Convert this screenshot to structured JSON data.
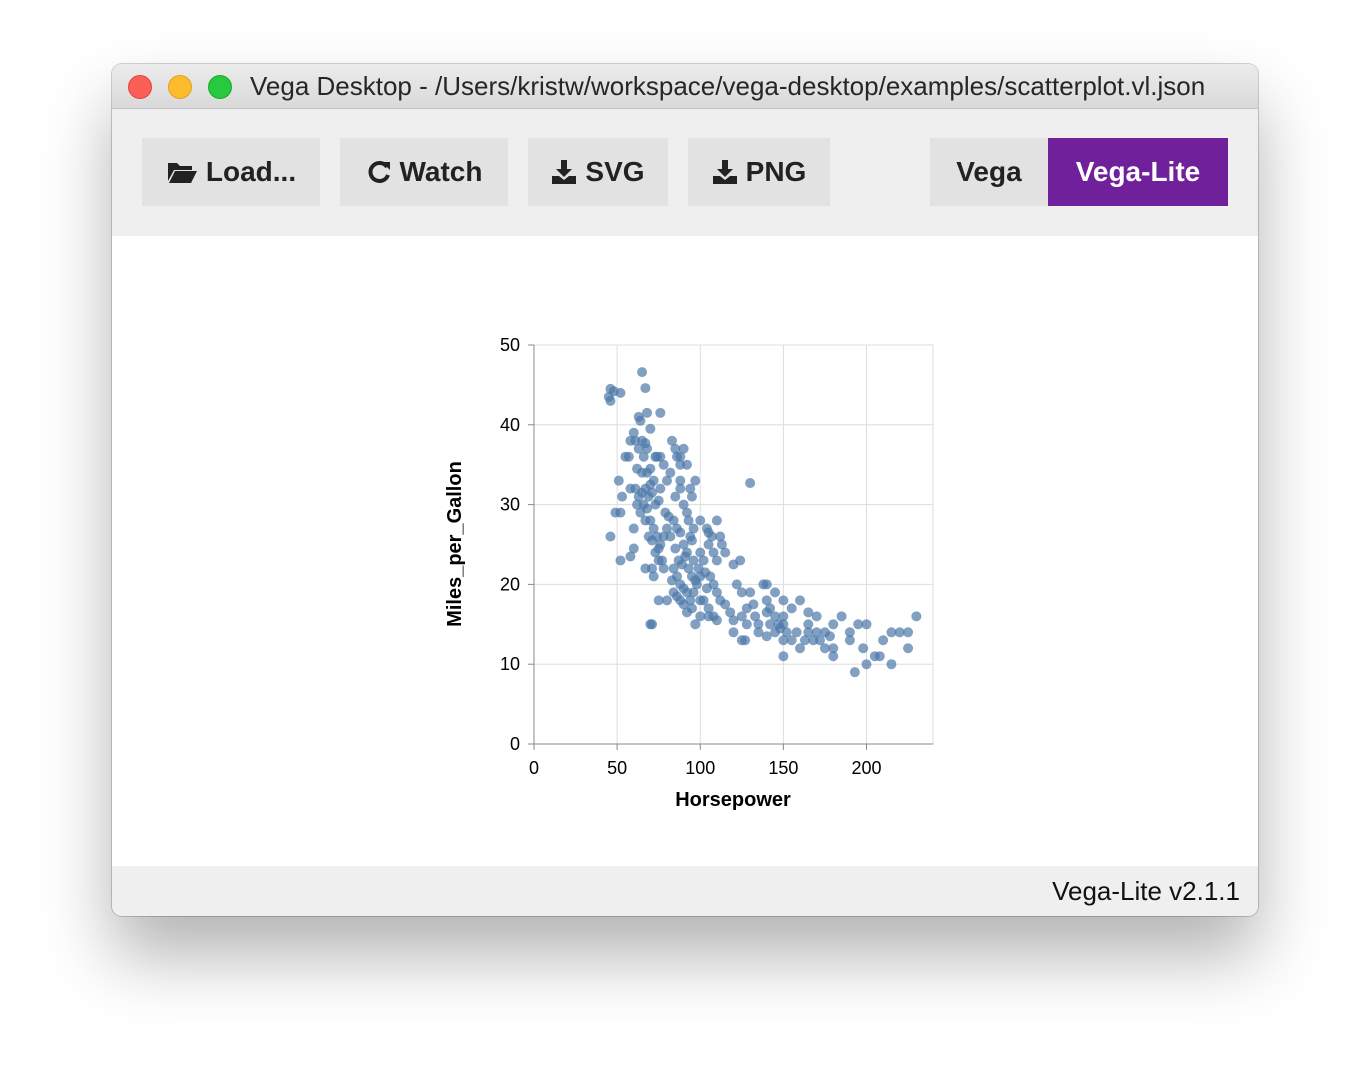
{
  "window": {
    "title": "Vega Desktop - /Users/kristw/workspace/vega-desktop/examples/scatterplot.vl.json"
  },
  "toolbar": {
    "load_label": "Load...",
    "watch_label": "Watch",
    "svg_label": "SVG",
    "png_label": "PNG",
    "mode_vega_label": "Vega",
    "mode_vegalite_label": "Vega-Lite",
    "active_mode": "Vega-Lite",
    "accent_color": "#70209a"
  },
  "icons": {
    "load": "folder-open-icon",
    "watch": "refresh-icon",
    "svg": "download-icon",
    "png": "download-icon"
  },
  "status": {
    "version": "Vega-Lite v2.1.1"
  },
  "chart_data": {
    "type": "scatter",
    "xlabel": "Horsepower",
    "ylabel": "Miles_per_Gallon",
    "xlim": [
      0,
      240
    ],
    "ylim": [
      0,
      50
    ],
    "xticks": [
      "0",
      "50",
      "100",
      "150",
      "200"
    ],
    "yticks": [
      "0",
      "10",
      "20",
      "30",
      "40",
      "50"
    ],
    "grid": true,
    "point_color": "#4c78a8",
    "points": [
      [
        45,
        43.5
      ],
      [
        46,
        44.5
      ],
      [
        46,
        43.0
      ],
      [
        48,
        44.2
      ],
      [
        52,
        44.0
      ],
      [
        65,
        46.6
      ],
      [
        67,
        44.6
      ],
      [
        63,
        41.0
      ],
      [
        76,
        41.5
      ],
      [
        46,
        26.0
      ],
      [
        52,
        23.0
      ],
      [
        49,
        29.0
      ],
      [
        52,
        29.0
      ],
      [
        53,
        31.0
      ],
      [
        51,
        33.0
      ],
      [
        58,
        23.5
      ],
      [
        60,
        27.0
      ],
      [
        58,
        32.0
      ],
      [
        55,
        36.0
      ],
      [
        57,
        36.0
      ],
      [
        58,
        38.0
      ],
      [
        60,
        39.0
      ],
      [
        61,
        38.0
      ],
      [
        63,
        37.0
      ],
      [
        65,
        38.0
      ],
      [
        67,
        37.7
      ],
      [
        70,
        39.5
      ],
      [
        66,
        36.0
      ],
      [
        68,
        37.0
      ],
      [
        62,
        34.5
      ],
      [
        65,
        34.0
      ],
      [
        68,
        34.0
      ],
      [
        70,
        34.5
      ],
      [
        72,
        33.0
      ],
      [
        61,
        32.0
      ],
      [
        63,
        31.0
      ],
      [
        65,
        31.5
      ],
      [
        67,
        32.0
      ],
      [
        69,
        31.0
      ],
      [
        70,
        32.5
      ],
      [
        71,
        31.5
      ],
      [
        73,
        30.0
      ],
      [
        75,
        30.5
      ],
      [
        76,
        32.0
      ],
      [
        62,
        30.0
      ],
      [
        64,
        29.0
      ],
      [
        66,
        30.0
      ],
      [
        68,
        29.5
      ],
      [
        67,
        28.0
      ],
      [
        70,
        28.0
      ],
      [
        72,
        27.0
      ],
      [
        74,
        26.0
      ],
      [
        76,
        25.0
      ],
      [
        78,
        26.0
      ],
      [
        69,
        26.0
      ],
      [
        71,
        25.5
      ],
      [
        73,
        24.0
      ],
      [
        75,
        24.5
      ],
      [
        77,
        23.0
      ],
      [
        71,
        22.0
      ],
      [
        72,
        21.0
      ],
      [
        70,
        15.0
      ],
      [
        71,
        15.0
      ],
      [
        74,
        36.0
      ],
      [
        76,
        36.0
      ],
      [
        78,
        35.0
      ],
      [
        80,
        33.0
      ],
      [
        82,
        34.0
      ],
      [
        83,
        38.0
      ],
      [
        85,
        37.0
      ],
      [
        86,
        36.0
      ],
      [
        88,
        36.0
      ],
      [
        90,
        37.0
      ],
      [
        88,
        35.0
      ],
      [
        92,
        35.0
      ],
      [
        94,
        32.0
      ],
      [
        85,
        31.0
      ],
      [
        88,
        32.0
      ],
      [
        90,
        30.0
      ],
      [
        92,
        29.0
      ],
      [
        95,
        31.0
      ],
      [
        97,
        33.0
      ],
      [
        80,
        27.0
      ],
      [
        82,
        26.0
      ],
      [
        84,
        28.0
      ],
      [
        86,
        27.0
      ],
      [
        88,
        26.5
      ],
      [
        90,
        25.0
      ],
      [
        92,
        24.0
      ],
      [
        94,
        26.0
      ],
      [
        96,
        27.0
      ],
      [
        95,
        25.5
      ],
      [
        85,
        24.5
      ],
      [
        87,
        23.0
      ],
      [
        89,
        22.5
      ],
      [
        91,
        23.5
      ],
      [
        93,
        22.0
      ],
      [
        95,
        21.0
      ],
      [
        97,
        20.5
      ],
      [
        99,
        22.0
      ],
      [
        84,
        22.0
      ],
      [
        86,
        21.0
      ],
      [
        88,
        20.0
      ],
      [
        90,
        19.5
      ],
      [
        92,
        19.0
      ],
      [
        94,
        18.0
      ],
      [
        96,
        19.0
      ],
      [
        98,
        20.0
      ],
      [
        100,
        21.0
      ],
      [
        100,
        18.0
      ],
      [
        80,
        18.0
      ],
      [
        84,
        19.0
      ],
      [
        86,
        18.5
      ],
      [
        88,
        18.0
      ],
      [
        90,
        17.5
      ],
      [
        92,
        16.5
      ],
      [
        95,
        17.0
      ],
      [
        97,
        15.0
      ],
      [
        100,
        16.0
      ],
      [
        102,
        18.0
      ],
      [
        104,
        19.5
      ],
      [
        102,
        23.0
      ],
      [
        105,
        25.0
      ],
      [
        105,
        26.5
      ],
      [
        100,
        28.0
      ],
      [
        104,
        27.0
      ],
      [
        107,
        26.0
      ],
      [
        108,
        24.0
      ],
      [
        110,
        23.0
      ],
      [
        103,
        21.5
      ],
      [
        106,
        21.0
      ],
      [
        108,
        20.0
      ],
      [
        110,
        19.0
      ],
      [
        112,
        18.0
      ],
      [
        105,
        17.0
      ],
      [
        108,
        16.0
      ],
      [
        110,
        15.5
      ],
      [
        105,
        16.0
      ],
      [
        110,
        28.0
      ],
      [
        112,
        26.0
      ],
      [
        113,
        25.0
      ],
      [
        115,
        24.0
      ],
      [
        120,
        22.5
      ],
      [
        122,
        20.0
      ],
      [
        124,
        23.0
      ],
      [
        125,
        19.0
      ],
      [
        128,
        17.0
      ],
      [
        115,
        17.5
      ],
      [
        118,
        16.5
      ],
      [
        120,
        14.0
      ],
      [
        125,
        16.0
      ],
      [
        127,
        13.0
      ],
      [
        128,
        15.0
      ],
      [
        130,
        19.0
      ],
      [
        132,
        17.5
      ],
      [
        133,
        16.0
      ],
      [
        135,
        14.0
      ],
      [
        138,
        20.0
      ],
      [
        140,
        18.0
      ],
      [
        142,
        17.0
      ],
      [
        145,
        16.0
      ],
      [
        147,
        15.0
      ],
      [
        140,
        13.5
      ],
      [
        142,
        15.0
      ],
      [
        145,
        14.0
      ],
      [
        148,
        14.5
      ],
      [
        150,
        15.0
      ],
      [
        150,
        13.0
      ],
      [
        152,
        14.0
      ],
      [
        155,
        13.0
      ],
      [
        150,
        16.0
      ],
      [
        140,
        20.0
      ],
      [
        145,
        19.0
      ],
      [
        150,
        18.0
      ],
      [
        155,
        17.0
      ],
      [
        158,
        14.0
      ],
      [
        160,
        12.0
      ],
      [
        163,
        13.0
      ],
      [
        165,
        14.0
      ],
      [
        165,
        15.0
      ],
      [
        168,
        13.0
      ],
      [
        170,
        14.0
      ],
      [
        172,
        13.0
      ],
      [
        175,
        14.0
      ],
      [
        175,
        12.0
      ],
      [
        178,
        13.5
      ],
      [
        180,
        12.0
      ],
      [
        180,
        11.0
      ],
      [
        180,
        15.0
      ],
      [
        185,
        16.0
      ],
      [
        190,
        13.0
      ],
      [
        193,
        9.0
      ],
      [
        195,
        15.0
      ],
      [
        198,
        12.0
      ],
      [
        200,
        10.0
      ],
      [
        205,
        11.0
      ],
      [
        208,
        11.0
      ],
      [
        210,
        13.0
      ],
      [
        215,
        14.0
      ],
      [
        220,
        14.0
      ],
      [
        225,
        14.0
      ],
      [
        225,
        12.0
      ],
      [
        230,
        16.0
      ],
      [
        215,
        10.0
      ],
      [
        130,
        32.7
      ],
      [
        88,
        33.0
      ],
      [
        93,
        28.0
      ],
      [
        78,
        22.0
      ],
      [
        165,
        16.5
      ],
      [
        160,
        18.0
      ],
      [
        190,
        14.0
      ],
      [
        200,
        15.0
      ],
      [
        150,
        11.0
      ],
      [
        170,
        16.0
      ],
      [
        120,
        15.5
      ],
      [
        135,
        15.0
      ],
      [
        140,
        16.5
      ],
      [
        125,
        13.0
      ],
      [
        83,
        20.5
      ],
      [
        96,
        23.0
      ],
      [
        100,
        24.0
      ],
      [
        60,
        24.5
      ],
      [
        67,
        22.0
      ],
      [
        75,
        18.0
      ],
      [
        79,
        29.0
      ],
      [
        81,
        28.5
      ],
      [
        73,
        36.0
      ],
      [
        64,
        40.5
      ],
      [
        68,
        41.5
      ],
      [
        75,
        23.0
      ]
    ]
  }
}
